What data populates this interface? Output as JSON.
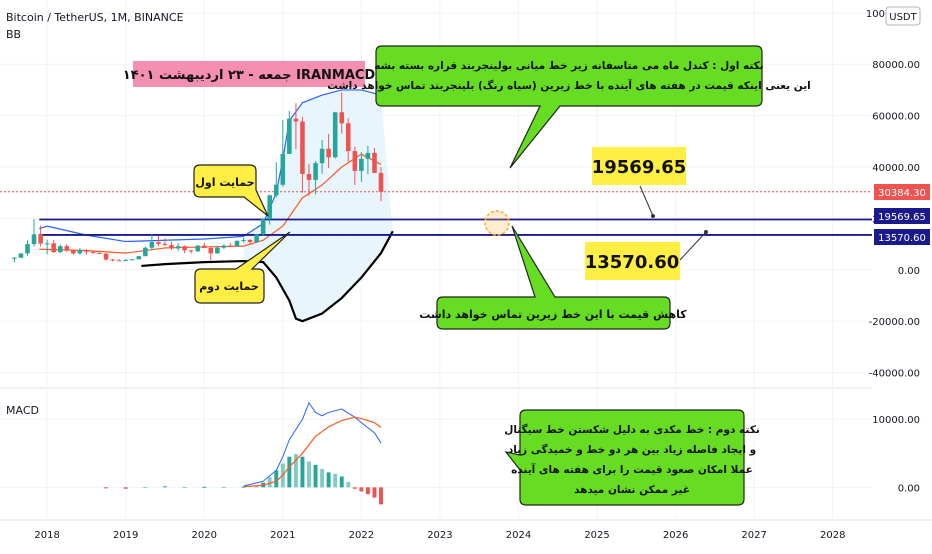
{
  "header": {
    "symbol": "Bitcoin / TetherUS, 1M, BINANCE",
    "indicator": "BB",
    "currency": "USDT"
  },
  "macd_label": "MACD",
  "title_banner": "جمعه - ۲۳ اردیبهشت ۱۴۰۱  IRANMACD",
  "callouts": {
    "top": [
      "نکته اول : کندل ماه می متاسفانه زیر خط میانی بولینجربند قراره بسته بشه",
      "این یعنی اینکه قیمت در هفته های آینده با خط زیرین (سیاه رنگ) بلینجربند تماس خواهد داشت"
    ],
    "support1": "حمایت اول",
    "support2": "حمایت دوم",
    "bottom": "کاهش قیمت با این خط زیرین تماس خواهد داشت",
    "macd": [
      "نکته دوم : خط مکدی به دلیل شکستن خط سیگنال",
      "و ایجاد فاصله زیاد بین هر دو خط و خمیدگی زیاد",
      "عملا امکان صعود قیمت را برای هفته های آینده",
      "غیر ممکن نشان میدهد"
    ]
  },
  "levels": {
    "level1": "19569.65",
    "level2": "13570.60"
  },
  "current_price": "30384.30",
  "colors": {
    "up": "#26a69a",
    "down": "#ef5350",
    "level": "#1a1a8c",
    "upper_band": "#2962ff",
    "basis": "#ff5722",
    "lower_band": "#000000",
    "band_fill": "#e3f2fd",
    "callout": "#66dd22",
    "price_box": "#ffee44",
    "banner": "#f48fb1",
    "current": "#ef5350"
  },
  "chart_data": {
    "type": "line",
    "title": "Bitcoin / TetherUS, 1M, BINANCE",
    "x_axis": {
      "ticks": [
        "2018",
        "2019",
        "2020",
        "2021",
        "2022",
        "2023",
        "2024",
        "2025",
        "2026",
        "2027",
        "2028"
      ],
      "range": [
        2017.4,
        2028.5
      ]
    },
    "y_axis": {
      "ticks": [
        "100000.00",
        "80000.00",
        "60000.00",
        "40000.00",
        "20000.00",
        "0.00",
        "-20000.00",
        "-40000.00"
      ],
      "tick_values": [
        100000,
        80000,
        60000,
        40000,
        20000,
        0,
        -20000,
        -40000
      ],
      "range": [
        -46000,
        105000
      ]
    },
    "candles": [
      [
        2017.583,
        4300,
        4900,
        2800,
        4700
      ],
      [
        2017.667,
        4700,
        6400,
        4600,
        6400
      ],
      [
        2017.75,
        6400,
        11500,
        5500,
        10000
      ],
      [
        2017.833,
        10000,
        19800,
        9000,
        13800
      ],
      [
        2017.917,
        13800,
        17200,
        9000,
        10200
      ],
      [
        2018.0,
        10200,
        11800,
        6000,
        10300
      ],
      [
        2018.083,
        10300,
        11700,
        6500,
        6900
      ],
      [
        2018.167,
        6900,
        9800,
        6400,
        9200
      ],
      [
        2018.25,
        9200,
        10000,
        7000,
        7500
      ],
      [
        2018.333,
        7500,
        7800,
        5800,
        6400
      ],
      [
        2018.417,
        6400,
        8500,
        5800,
        7700
      ],
      [
        2018.5,
        7700,
        8000,
        5900,
        7000
      ],
      [
        2018.583,
        7000,
        7400,
        6100,
        6600
      ],
      [
        2018.667,
        6600,
        6800,
        6200,
        6300
      ],
      [
        2018.75,
        6300,
        6600,
        3600,
        4000
      ],
      [
        2018.833,
        4000,
        4300,
        3200,
        3700
      ],
      [
        2018.917,
        3700,
        4100,
        3400,
        3500
      ],
      [
        2019.0,
        3500,
        4200,
        3400,
        3800
      ],
      [
        2019.083,
        3800,
        4100,
        3700,
        4100
      ],
      [
        2019.167,
        4100,
        5400,
        4000,
        5300
      ],
      [
        2019.25,
        5300,
        9000,
        5300,
        8600
      ],
      [
        2019.333,
        8600,
        13900,
        7500,
        10800
      ],
      [
        2019.417,
        10800,
        13200,
        9100,
        10100
      ],
      [
        2019.5,
        10100,
        12300,
        9400,
        9600
      ],
      [
        2019.583,
        9600,
        10900,
        7700,
        8300
      ],
      [
        2019.667,
        8300,
        10400,
        7300,
        9200
      ],
      [
        2019.75,
        9200,
        9500,
        6500,
        7600
      ],
      [
        2019.833,
        7600,
        7700,
        6400,
        7200
      ],
      [
        2019.917,
        7200,
        9600,
        6900,
        9400
      ],
      [
        2020.0,
        9400,
        10500,
        8500,
        8500
      ],
      [
        2020.083,
        8500,
        9200,
        3800,
        6400
      ],
      [
        2020.167,
        6400,
        9400,
        6200,
        8600
      ],
      [
        2020.25,
        8600,
        10000,
        8100,
        9400
      ],
      [
        2020.333,
        9400,
        10400,
        8900,
        9100
      ],
      [
        2020.417,
        9100,
        11400,
        9000,
        11300
      ],
      [
        2020.5,
        11300,
        12400,
        10600,
        11600
      ],
      [
        2020.583,
        11600,
        12000,
        9800,
        10800
      ],
      [
        2020.667,
        10800,
        14000,
        10400,
        13800
      ],
      [
        2020.75,
        13800,
        19800,
        13200,
        19700
      ],
      [
        2020.833,
        19700,
        29300,
        17600,
        29000
      ],
      [
        2020.917,
        29000,
        41900,
        28100,
        33100
      ],
      [
        2021.0,
        33100,
        58300,
        32300,
        45100
      ],
      [
        2021.083,
        45100,
        61800,
        45000,
        58800
      ],
      [
        2021.167,
        58800,
        64800,
        47000,
        57700
      ],
      [
        2021.25,
        57700,
        59600,
        30000,
        37300
      ],
      [
        2021.333,
        37300,
        41300,
        28800,
        35000
      ],
      [
        2021.417,
        35000,
        42400,
        29300,
        41500
      ],
      [
        2021.5,
        41500,
        50500,
        37400,
        47100
      ],
      [
        2021.583,
        47100,
        52900,
        39600,
        43800
      ],
      [
        2021.667,
        43800,
        61500,
        43300,
        61300
      ],
      [
        2021.75,
        61300,
        69000,
        53000,
        57000
      ],
      [
        2021.833,
        57000,
        59000,
        42000,
        46200
      ],
      [
        2021.917,
        46200,
        47900,
        33000,
        38500
      ],
      [
        2022.0,
        38500,
        45800,
        34300,
        43200
      ],
      [
        2022.083,
        43200,
        48200,
        37200,
        45500
      ],
      [
        2022.167,
        45500,
        47400,
        37700,
        37700
      ],
      [
        2022.25,
        37700,
        40000,
        26700,
        30384
      ]
    ],
    "bollinger": {
      "upper": [
        [
          2017.9,
          16000
        ],
        [
          2018.0,
          17000
        ],
        [
          2018.5,
          13500
        ],
        [
          2019.0,
          11000
        ],
        [
          2019.5,
          11500
        ],
        [
          2020.0,
          12000
        ],
        [
          2020.5,
          13000
        ],
        [
          2020.75,
          18000
        ],
        [
          2020.917,
          30000
        ],
        [
          2021.0,
          43000
        ],
        [
          2021.083,
          58000
        ],
        [
          2021.25,
          65000
        ],
        [
          2021.5,
          68000
        ],
        [
          2021.75,
          70000
        ],
        [
          2022.0,
          70000
        ],
        [
          2022.25,
          68000
        ]
      ],
      "basis": [
        [
          2017.9,
          8000
        ],
        [
          2018.5,
          7500
        ],
        [
          2019.0,
          6500
        ],
        [
          2019.5,
          8500
        ],
        [
          2020.0,
          8900
        ],
        [
          2020.5,
          9200
        ],
        [
          2020.75,
          11500
        ],
        [
          2021.0,
          17000
        ],
        [
          2021.25,
          28000
        ],
        [
          2021.5,
          33000
        ],
        [
          2021.75,
          40000
        ],
        [
          2022.0,
          45000
        ],
        [
          2022.25,
          41000
        ]
      ],
      "lower": [
        [
          2019.2,
          1500
        ],
        [
          2019.5,
          2200
        ],
        [
          2020.0,
          3000
        ],
        [
          2020.5,
          3400
        ],
        [
          2020.75,
          3000
        ],
        [
          2020.917,
          -3000
        ],
        [
          2021.083,
          -12000
        ],
        [
          2021.167,
          -19000
        ],
        [
          2021.25,
          -20000
        ],
        [
          2021.5,
          -17000
        ],
        [
          2021.75,
          -11000
        ],
        [
          2022.0,
          -3000
        ],
        [
          2022.25,
          6500
        ],
        [
          2022.4,
          15000
        ]
      ]
    },
    "horizontal_levels": [
      19569.65,
      13570.6
    ],
    "current_price": 30384.3,
    "macd": {
      "y_ticks": [
        "10000.00",
        "0.00"
      ],
      "y_tick_values": [
        10000,
        0
      ],
      "range": [
        -4500,
        14000
      ],
      "macd_line": [
        [
          2020.5,
          200
        ],
        [
          2020.75,
          900
        ],
        [
          2020.917,
          2500
        ],
        [
          2021.0,
          4500
        ],
        [
          2021.083,
          7000
        ],
        [
          2021.25,
          10000
        ],
        [
          2021.333,
          12400
        ],
        [
          2021.417,
          11000
        ],
        [
          2021.5,
          10500
        ],
        [
          2021.583,
          11000
        ],
        [
          2021.75,
          11500
        ],
        [
          2021.917,
          10300
        ],
        [
          2022.0,
          9500
        ],
        [
          2022.167,
          8000
        ],
        [
          2022.25,
          6500
        ]
      ],
      "signal_line": [
        [
          2020.5,
          100
        ],
        [
          2020.75,
          300
        ],
        [
          2020.917,
          900
        ],
        [
          2021.0,
          1800
        ],
        [
          2021.083,
          3000
        ],
        [
          2021.25,
          5000
        ],
        [
          2021.417,
          7500
        ],
        [
          2021.583,
          8900
        ],
        [
          2021.75,
          9800
        ],
        [
          2021.917,
          10300
        ],
        [
          2022.0,
          10100
        ],
        [
          2022.167,
          9500
        ],
        [
          2022.25,
          8800
        ]
      ],
      "histogram": [
        [
          2018.75,
          -100
        ],
        [
          2019.0,
          -200
        ],
        [
          2019.25,
          50
        ],
        [
          2019.5,
          150
        ],
        [
          2019.75,
          50
        ],
        [
          2020.0,
          80
        ],
        [
          2020.25,
          60
        ],
        [
          2020.5,
          100
        ],
        [
          2020.667,
          300
        ],
        [
          2020.75,
          700
        ],
        [
          2020.833,
          1500
        ],
        [
          2020.917,
          2500
        ],
        [
          2021.0,
          3500
        ],
        [
          2021.083,
          4500
        ],
        [
          2021.167,
          4900
        ],
        [
          2021.25,
          4500
        ],
        [
          2021.333,
          3800
        ],
        [
          2021.417,
          3300
        ],
        [
          2021.5,
          2700
        ],
        [
          2021.583,
          2200
        ],
        [
          2021.667,
          2000
        ],
        [
          2021.75,
          1600
        ],
        [
          2021.833,
          800
        ],
        [
          2021.917,
          -200
        ],
        [
          2022.0,
          -600
        ],
        [
          2022.083,
          -1000
        ],
        [
          2022.167,
          -1500
        ],
        [
          2022.25,
          -2500
        ]
      ]
    }
  }
}
